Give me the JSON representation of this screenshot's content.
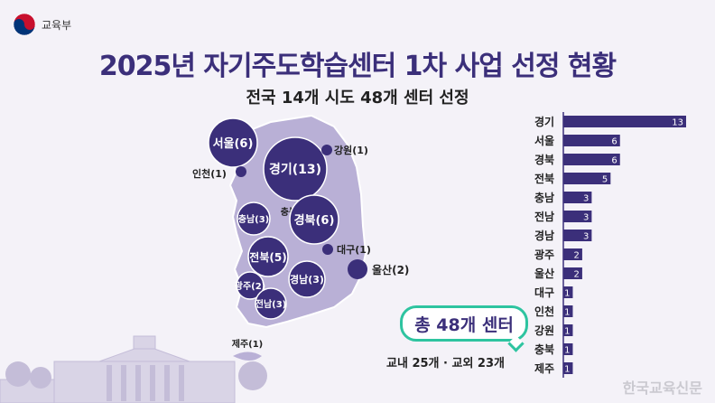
{
  "header": {
    "ministry": "교육부",
    "title": "2025년 자기주도학습센터 1차 사업 선정 현황",
    "subtitle": "전국 14개 시도 48개 센터 선정"
  },
  "summary": {
    "total": "총 48개 센터",
    "breakdown": "교내 25개 · 교외 23개"
  },
  "watermark": "한국교육신문",
  "colors": {
    "primary": "#3b2f7a",
    "map": "#b9b0d6",
    "accent": "#2ec4a0"
  },
  "map_labels": [
    {
      "text": "서울(6)"
    },
    {
      "text": "경기(13)"
    },
    {
      "text": "강원(1)"
    },
    {
      "text": "인천(1)"
    },
    {
      "text": "충북(1)"
    },
    {
      "text": "충남(3)"
    },
    {
      "text": "경북(6)"
    },
    {
      "text": "대구(1)"
    },
    {
      "text": "전북(5)"
    },
    {
      "text": "울산(2)"
    },
    {
      "text": "경남(3)"
    },
    {
      "text": "광주(2)"
    },
    {
      "text": "전남(3)"
    },
    {
      "text": "제주(1)"
    }
  ],
  "chart_data": {
    "type": "bar",
    "orientation": "horizontal",
    "categories": [
      "경기",
      "서울",
      "경북",
      "전북",
      "충남",
      "전남",
      "경남",
      "광주",
      "울산",
      "대구",
      "인천",
      "강원",
      "충북",
      "제주"
    ],
    "values": [
      13,
      6,
      6,
      5,
      3,
      3,
      3,
      2,
      2,
      1,
      1,
      1,
      1,
      1
    ],
    "xlim": [
      0,
      13
    ]
  }
}
